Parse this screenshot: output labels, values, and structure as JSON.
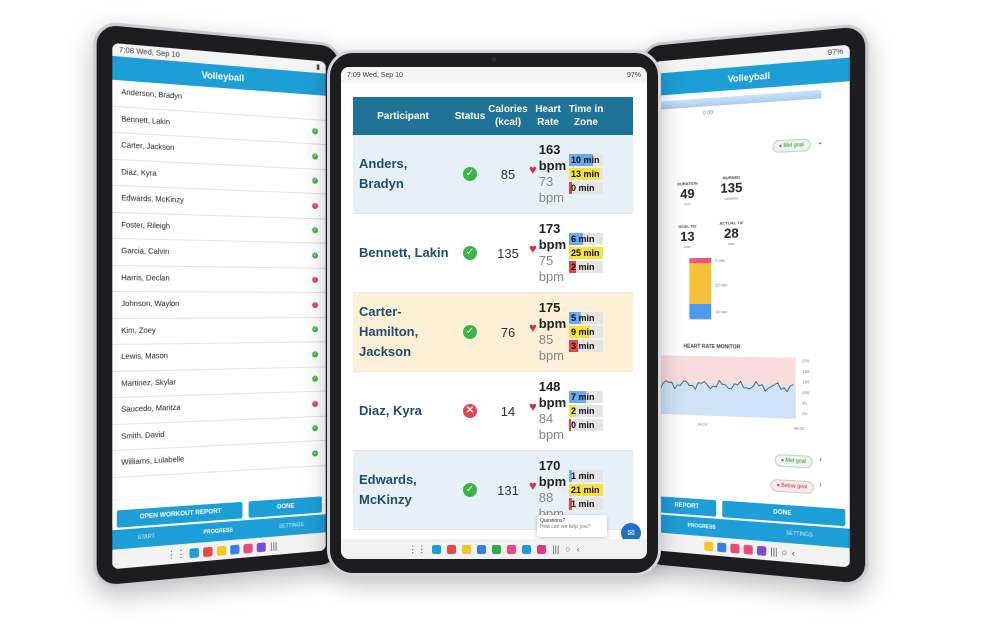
{
  "left": {
    "status_time": "7:08",
    "status_date": "Wed, Sep 10",
    "title": "Volleyball",
    "roster": [
      {
        "name": "Anderson, Bradyn",
        "state": ""
      },
      {
        "name": "Bennett, Lakin",
        "state": "ok"
      },
      {
        "name": "Carter, Jackson",
        "state": "ok"
      },
      {
        "name": "Diaz, Kyra",
        "state": "ok"
      },
      {
        "name": "Edwards, McKinzy",
        "state": "bad"
      },
      {
        "name": "Foster, Rileigh",
        "state": "ok"
      },
      {
        "name": "Garcia, Calvin",
        "state": "ok"
      },
      {
        "name": "Harris, Declan",
        "state": "bad"
      },
      {
        "name": "Johnson, Waylon",
        "state": "bad"
      },
      {
        "name": "Kim, Zoey",
        "state": "ok"
      },
      {
        "name": "Lewis, Mason",
        "state": "ok"
      },
      {
        "name": "Martinez, Skylar",
        "state": "ok"
      },
      {
        "name": "Saucedo, Maritza",
        "state": "bad"
      },
      {
        "name": "Smith, David",
        "state": "ok"
      },
      {
        "name": "Williams, Lulabelle",
        "state": "ok"
      }
    ],
    "btn_report": "OPEN WORKOUT REPORT",
    "btn_done": "DONE",
    "tabs": [
      "START",
      "PROGRESS",
      "SETTINGS"
    ]
  },
  "center": {
    "status_time": "7:09",
    "status_date": "Wed, Sep 10",
    "battery": "97%",
    "headers": {
      "participant": "Participant",
      "status": "Status",
      "calories": "Calories (kcal)",
      "heart": "Heart Rate",
      "tiz": "Time in Zone"
    },
    "rows": [
      {
        "name": "Anders, Bradyn",
        "status": "ok",
        "cal": "85",
        "hr_max": "163 bpm",
        "hr_avg": "73 bpm",
        "zones": [
          {
            "t": "10 min",
            "c": "#6ea8f0",
            "f": 0.7
          },
          {
            "t": "13 min",
            "c": "#f5e23a",
            "f": 0.9
          },
          {
            "t": "0 min",
            "c": "#e0464e",
            "f": 0.1
          }
        ]
      },
      {
        "name": "Bennett, Lakin",
        "status": "ok",
        "cal": "135",
        "hr_max": "173 bpm",
        "hr_avg": "75 bpm",
        "zones": [
          {
            "t": "6 min",
            "c": "#6ea8f0",
            "f": 0.4
          },
          {
            "t": "25 min",
            "c": "#f5e23a",
            "f": 1.0
          },
          {
            "t": "2 min",
            "c": "#e0464e",
            "f": 0.2
          }
        ]
      },
      {
        "name": "Carter-Hamilton, Jackson",
        "status": "ok",
        "cal": "76",
        "hr_max": "175 bpm",
        "hr_avg": "85 bpm",
        "zones": [
          {
            "t": "5 min",
            "c": "#6ea8f0",
            "f": 0.35
          },
          {
            "t": "9 min",
            "c": "#f5e23a",
            "f": 0.6
          },
          {
            "t": "3 min",
            "c": "#e0464e",
            "f": 0.25
          }
        ]
      },
      {
        "name": "Diaz, Kyra",
        "status": "bad",
        "cal": "14",
        "hr_max": "148 bpm",
        "hr_avg": "84 bpm",
        "zones": [
          {
            "t": "7 min",
            "c": "#6ea8f0",
            "f": 0.5
          },
          {
            "t": "2 min",
            "c": "#f5e23a",
            "f": 0.2
          },
          {
            "t": "0 min",
            "c": "#e0464e",
            "f": 0.05
          }
        ]
      },
      {
        "name": "Edwards, McKinzy",
        "status": "ok",
        "cal": "131",
        "hr_max": "170 bpm",
        "hr_avg": "88 bpm",
        "zones": [
          {
            "t": "1 min",
            "c": "#6ea8f0",
            "f": 0.1
          },
          {
            "t": "21 min",
            "c": "#f5e23a",
            "f": 1.0
          },
          {
            "t": "1 min",
            "c": "#e0464e",
            "f": 0.1
          }
        ]
      }
    ],
    "chat_line1": "Questions?",
    "chat_line2": "How can we help you?"
  },
  "right": {
    "battery": "97%",
    "title": "Volleyball",
    "axis_label": "0:00",
    "met_goal": "Met goal",
    "below_goal": "Below goal",
    "duration_label": "DURATION",
    "duration": "49",
    "duration_unit": "min",
    "burned_label": "BURNED",
    "burned": "135",
    "burned_unit": "calories",
    "goal_label": "GOAL TIZ",
    "goal": "13",
    "goal_unit": "min",
    "actual_label": "ACTUAL TIZ",
    "actual": "28",
    "actual_unit": "min",
    "bar_labels": [
      "2 min",
      "22 min",
      "10 min"
    ],
    "chart_title": "HEART RATE MONITOR",
    "hr_ticks": [
      "220",
      "180",
      "150",
      "100",
      "50",
      "20"
    ],
    "time_ticks": [
      "24:24",
      "48:42"
    ],
    "btn_report": "REPORT",
    "btn_done": "DONE",
    "tabs": [
      "PROGRESS",
      "SETTINGS"
    ]
  }
}
